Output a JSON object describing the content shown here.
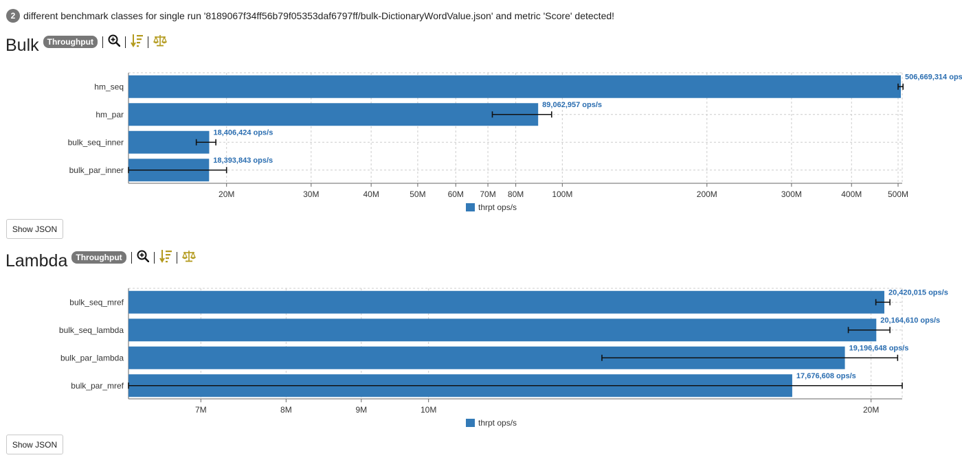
{
  "message": {
    "count": "2",
    "text": "different benchmark classes for single run '8189067f34ff56b79f05353daf6797ff/bulk-DictionaryWordValue.json' and metric 'Score' detected!"
  },
  "colors": {
    "bar": "#337ab7",
    "label": "#2a6db0",
    "grid": "#cccccc",
    "badge": "#777777",
    "tool_accent": "#b39a1d"
  },
  "sections": [
    {
      "title": "Bulk",
      "badge": "Throughput",
      "show_json": "Show JSON"
    },
    {
      "title": "Lambda",
      "badge": "Throughput",
      "show_json": "Show JSON"
    }
  ],
  "chart_data": [
    {
      "type": "bar",
      "orientation": "horizontal",
      "title": "Bulk",
      "xscale": "log",
      "xlim": [
        12500000,
        510000000
      ],
      "xticks": [
        20000000,
        30000000,
        40000000,
        50000000,
        60000000,
        70000000,
        80000000,
        100000000,
        200000000,
        300000000,
        400000000,
        500000000
      ],
      "xtick_labels": [
        "20M",
        "30M",
        "40M",
        "50M",
        "60M",
        "70M",
        "80M",
        "100M",
        "200M",
        "300M",
        "400M",
        "500M"
      ],
      "categories": [
        "hm_seq",
        "hm_par",
        "bulk_seq_inner",
        "bulk_par_inner"
      ],
      "series": [
        {
          "name": "thrpt ops/s",
          "values": [
            506669314,
            89062957,
            18406424,
            18393843
          ],
          "error_low": [
            500000000,
            71500000,
            17300000,
            12500000
          ],
          "error_high": [
            512000000,
            95000000,
            19000000,
            20000000
          ],
          "labels": [
            "506,669,314 ops/s",
            "89,062,957 ops/s",
            "18,406,424 ops/s",
            "18,393,843 ops/s"
          ]
        }
      ],
      "legend": "thrpt ops/s",
      "legend_position": "bottom-center"
    },
    {
      "type": "bar",
      "orientation": "horizontal",
      "title": "Lambda",
      "xscale": "log",
      "xlim": [
        6250000,
        21000000
      ],
      "xticks": [
        7000000,
        8000000,
        9000000,
        10000000,
        20000000
      ],
      "xtick_labels": [
        "7M",
        "8M",
        "9M",
        "10M",
        "20M"
      ],
      "categories": [
        "bulk_seq_mref",
        "bulk_seq_lambda",
        "bulk_par_lambda",
        "bulk_par_mref"
      ],
      "series": [
        {
          "name": "thrpt ops/s",
          "values": [
            20420015,
            20164610,
            19196648,
            17676608
          ],
          "error_low": [
            20150000,
            19300000,
            13120000,
            6250000
          ],
          "error_high": [
            20600000,
            20600000,
            20850000,
            21000000
          ],
          "labels": [
            "20,420,015 ops/s",
            "20,164,610 ops/s",
            "19,196,648 ops/s",
            "17,676,608 ops/s"
          ]
        }
      ],
      "legend": "thrpt ops/s",
      "legend_position": "bottom-center"
    }
  ]
}
